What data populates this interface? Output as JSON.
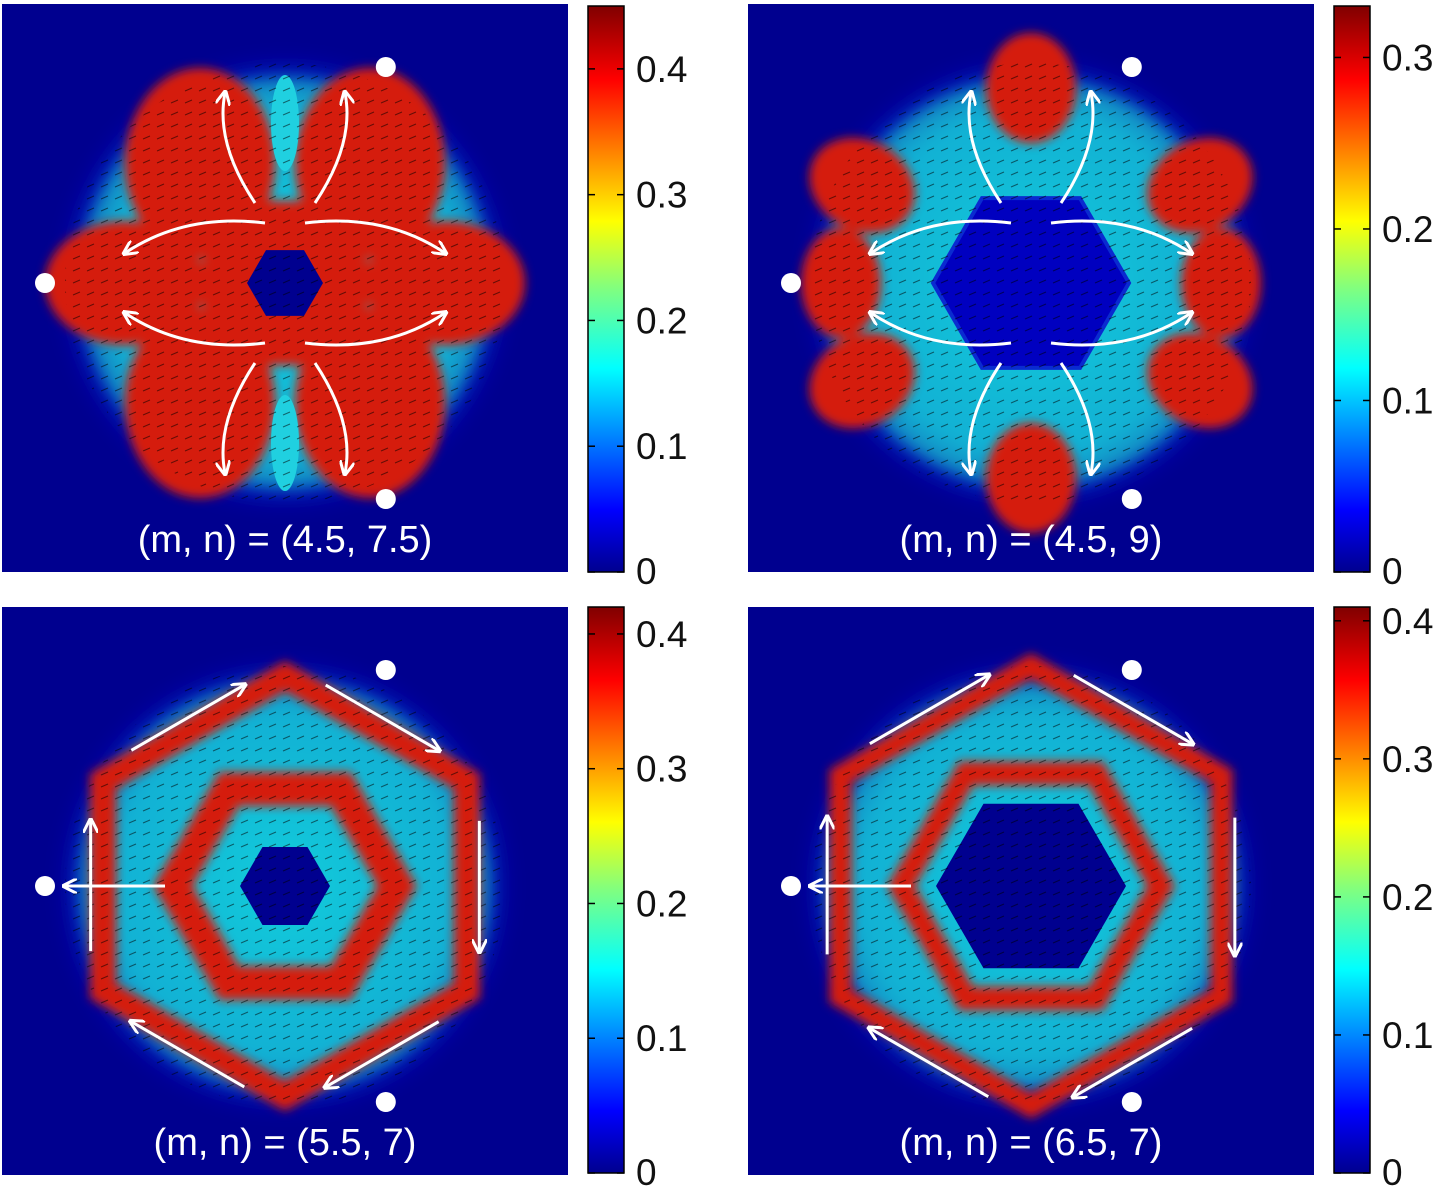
{
  "figure": {
    "panels": [
      {
        "label": "(m, n) = (4.5, 7.5)",
        "colorbar": {
          "max": 0.45,
          "ticks": [
            "0",
            "0.1",
            "0.2",
            "0.3",
            "0.4"
          ],
          "tick_values": [
            0,
            0.1,
            0.2,
            0.3,
            0.4
          ]
        },
        "pattern": "petals-4"
      },
      {
        "label": "(m, n) = (4.5, 9)",
        "colorbar": {
          "max": 0.33,
          "ticks": [
            "0",
            "0.1",
            "0.2",
            "0.3"
          ],
          "tick_values": [
            0,
            0.1,
            0.2,
            0.3
          ]
        },
        "pattern": "hex-ring-lobes"
      },
      {
        "label": "(m, n) = (5.5, 7)",
        "colorbar": {
          "max": 0.42,
          "ticks": [
            "0",
            "0.1",
            "0.2",
            "0.3",
            "0.4"
          ],
          "tick_values": [
            0,
            0.1,
            0.2,
            0.3,
            0.4
          ]
        },
        "pattern": "hex-inner-outer"
      },
      {
        "label": "(m, n) = (6.5, 7)",
        "colorbar": {
          "max": 0.41,
          "ticks": [
            "0",
            "0.1",
            "0.2",
            "0.3",
            "0.4"
          ],
          "tick_values": [
            0,
            0.1,
            0.2,
            0.3,
            0.4
          ]
        },
        "pattern": "hex-concentric"
      }
    ],
    "colormap": "jet",
    "colors": {
      "background": "#00008f",
      "markers": "#ffffff",
      "streamlines": "#ffffff",
      "vectors": "#000000"
    }
  },
  "chart_data": [
    {
      "type": "heatmap",
      "title": "(m, n) = (4.5, 7.5)",
      "zlim": [
        0,
        0.45
      ],
      "colorbar_ticks": [
        0,
        0.1,
        0.2,
        0.3,
        0.4
      ]
    },
    {
      "type": "heatmap",
      "title": "(m, n) = (4.5, 9)",
      "zlim": [
        0,
        0.33
      ],
      "colorbar_ticks": [
        0,
        0.1,
        0.2,
        0.3
      ]
    },
    {
      "type": "heatmap",
      "title": "(m, n) = (5.5, 7)",
      "zlim": [
        0,
        0.42
      ],
      "colorbar_ticks": [
        0,
        0.1,
        0.2,
        0.3,
        0.4
      ]
    },
    {
      "type": "heatmap",
      "title": "(m, n) = (6.5, 7)",
      "zlim": [
        0,
        0.41
      ],
      "colorbar_ticks": [
        0,
        0.1,
        0.2,
        0.3,
        0.4
      ]
    }
  ]
}
